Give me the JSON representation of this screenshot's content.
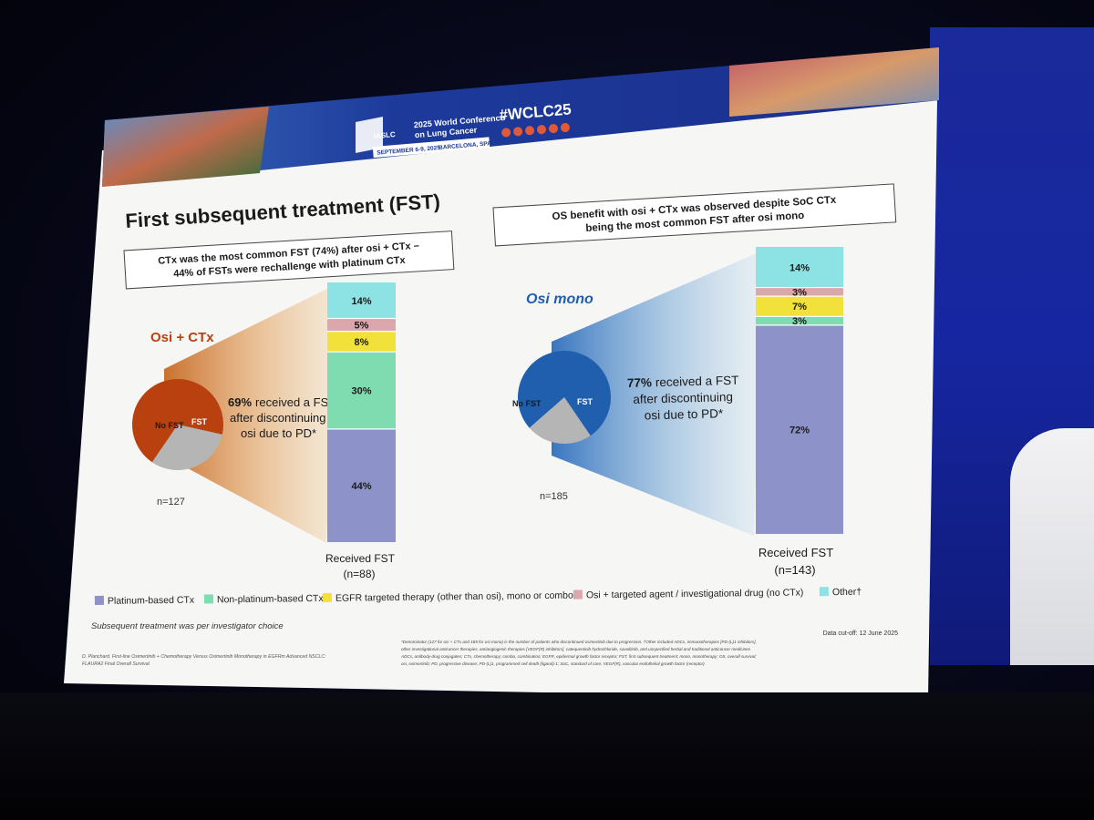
{
  "conference": {
    "org": "IASLC",
    "name_line1": "2025 World Conference",
    "name_line2": "on Lung Cancer",
    "dates": "SEPTEMBER 6-9, 2025",
    "location": "BARCELONA, SPAIN",
    "hashtag": "#WCLC25"
  },
  "slide": {
    "title": "First subsequent treatment (FST)",
    "left_callout_line1": "CTx was the most common FST (74%) after osi + CTx –",
    "left_callout_line2": "44% of FSTs were rechallenge with platinum CTx",
    "right_callout_line1": "OS benefit with osi + CTx was observed despite SoC CTx",
    "right_callout_line2": "being the most common FST after osi mono",
    "footnote_left": "Subsequent treatment was per investigator choice",
    "citation_line1": "D. Planchard. First-line Osimertinib + Chemotherapy Versus Osimertinib Monotherapy in EGFRm Advanced NSCLC:",
    "citation_line2": "FLAURA2 Final Overall Survival",
    "data_cutoff": "Data cut-off: 12 June 2025",
    "abbrev_line1": "*Denominator (127 for osi + CTx and 185 for osi mono) is the number of patients who discontinued osimertinib due to progression. †Other included ADCs, immunotherapies [PD-(L)1 inhibitors],",
    "abbrev_line2": "other investigational anticancer therapies, antiangiogenic therapies [VEGF(R) inhibitors], catequentinib hydrochloride, savolitinib, and unspecified herbal and traditional anticancer medicines",
    "abbrev_line3": "ADCs, antibody-drug conjugates; CTx, chemotherapy; combo, combination; EGFR, epidermal growth factor receptor; FST, first subsequent treatment; mono, monotherapy; OS, overall survival;",
    "abbrev_line4": "osi, osimertinib; PD, progressive disease; PD-(L)1, programmed cell death (ligand)-1; SoC, standard of care; VEGF(R), vascular endothelial growth factor (receptor)"
  },
  "chart_data": [
    {
      "type": "pie",
      "title": "Osi + CTx",
      "n_label": "n=127",
      "slices": [
        {
          "label": "FST",
          "value": 69,
          "color": "#b8410f"
        },
        {
          "label": "No FST",
          "value": 31,
          "color": "#b5b5b5"
        }
      ],
      "annotation_pct": "69%",
      "annotation_line1": "received a FST",
      "annotation_line2": "after discontinuing",
      "annotation_line3": "osi due to PD*"
    },
    {
      "type": "bar",
      "stacked": true,
      "xlabel": "Received FST",
      "n_label": "(n=88)",
      "series": [
        {
          "name": "Platinum-based CTx",
          "value": 44,
          "label": "44%",
          "color": "#8d93c8"
        },
        {
          "name": "Non-platinum-based CTx",
          "value": 30,
          "label": "30%",
          "color": "#7fdcb0"
        },
        {
          "name": "EGFR targeted therapy (other than osi), mono or combo",
          "value": 8,
          "label": "8%",
          "color": "#f2e13a"
        },
        {
          "name": "Osi + targeted agent / investigational drug (no CTx)",
          "value": 5,
          "label": "5%",
          "color": "#d9a7ac"
        },
        {
          "name": "Other†",
          "value": 14,
          "label": "14%",
          "color": "#8de3e3"
        }
      ]
    },
    {
      "type": "pie",
      "title": "Osi mono",
      "n_label": "n=185",
      "slices": [
        {
          "label": "FST",
          "value": 77,
          "color": "#1f5fae"
        },
        {
          "label": "No FST",
          "value": 23,
          "color": "#b5b5b5"
        }
      ],
      "annotation_pct": "77%",
      "annotation_line1": "received a FST",
      "annotation_line2": "after discontinuing",
      "annotation_line3": "osi due to PD*"
    },
    {
      "type": "bar",
      "stacked": true,
      "xlabel": "Received FST",
      "n_label": "(n=143)",
      "series": [
        {
          "name": "Platinum-based CTx",
          "value": 72,
          "label": "72%",
          "color": "#8d93c8"
        },
        {
          "name": "Non-platinum-based CTx",
          "value": 3,
          "label": "3%",
          "color": "#7fdcb0"
        },
        {
          "name": "EGFR targeted therapy (other than osi), mono or combo",
          "value": 7,
          "label": "7%",
          "color": "#f2e13a"
        },
        {
          "name": "Osi + targeted agent / investigational drug (no CTx)",
          "value": 3,
          "label": "3%",
          "color": "#d9a7ac"
        },
        {
          "name": "Other†",
          "value": 14,
          "label": "14%",
          "color": "#8de3e3"
        }
      ]
    }
  ],
  "legend": [
    {
      "label": "Platinum-based CTx",
      "color": "#8d93c8"
    },
    {
      "label": "Non-platinum-based CTx",
      "color": "#7fdcb0"
    },
    {
      "label": "EGFR targeted therapy (other than osi), mono or combo",
      "color": "#f2e13a"
    },
    {
      "label": "Osi + targeted agent / investigational drug (no CTx)",
      "color": "#d9a7ac"
    },
    {
      "label": "Other†",
      "color": "#8de3e3"
    }
  ],
  "social_icons": [
    "facebook-icon",
    "linkedin-icon",
    "x-icon",
    "instagram-icon",
    "youtube-icon",
    "wechat-icon"
  ]
}
